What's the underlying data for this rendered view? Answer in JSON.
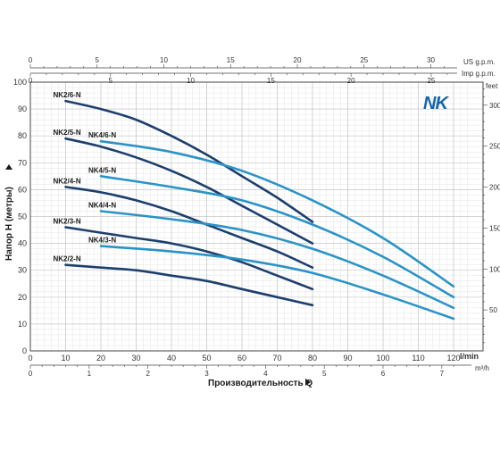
{
  "chart_data": {
    "type": "line",
    "logo": "NK",
    "xlabel": "Производительность Q",
    "ylabel": "Напор H (метры)",
    "x_unit": "l/min",
    "y2_unit": "feet",
    "top1_unit": "US g.p.m.",
    "top2_unit": "Imp g.p.m.",
    "bottom2_unit": "m³/h",
    "xlim": [
      0,
      125
    ],
    "ylim": [
      0,
      100
    ],
    "x_ticks": [
      0,
      10,
      20,
      30,
      40,
      50,
      60,
      70,
      80,
      90,
      100,
      110,
      120
    ],
    "y_ticks": [
      0,
      10,
      20,
      30,
      40,
      50,
      60,
      70,
      80,
      90,
      100
    ],
    "y2_ticks": [
      50,
      100,
      150,
      200,
      250,
      300
    ],
    "top1_ticks": [
      0,
      5,
      10,
      15,
      20,
      25,
      30
    ],
    "top2_ticks": [
      0,
      5,
      10,
      15,
      20,
      25
    ],
    "bottom2_ticks": [
      0,
      1,
      2,
      3,
      4,
      5,
      6,
      7
    ],
    "series": [
      {
        "name": "NK2/6-N",
        "color": "#1c3f6e",
        "x": [
          10,
          20,
          30,
          40,
          50,
          60,
          70,
          80
        ],
        "y": [
          93,
          90,
          86,
          80,
          73,
          65,
          57,
          48
        ]
      },
      {
        "name": "NK2/5-N",
        "color": "#1c3f6e",
        "x": [
          10,
          20,
          30,
          40,
          50,
          60,
          70,
          80
        ],
        "y": [
          79,
          76,
          72,
          67,
          61,
          54,
          47,
          40
        ]
      },
      {
        "name": "NK2/4-N",
        "color": "#1c3f6e",
        "x": [
          10,
          20,
          30,
          40,
          50,
          60,
          70,
          80
        ],
        "y": [
          61,
          59,
          56,
          52,
          47,
          42,
          37,
          31
        ]
      },
      {
        "name": "NK2/3-N",
        "color": "#1c3f6e",
        "x": [
          10,
          20,
          30,
          40,
          50,
          60,
          70,
          80
        ],
        "y": [
          46,
          44,
          42,
          40,
          37,
          33,
          28,
          23
        ]
      },
      {
        "name": "NK2/2-N",
        "color": "#1c3f6e",
        "x": [
          10,
          20,
          30,
          40,
          50,
          60,
          70,
          80
        ],
        "y": [
          32,
          31,
          30,
          28,
          26,
          23,
          20,
          17
        ]
      },
      {
        "name": "NK4/6-N",
        "color": "#2a93c8",
        "x": [
          20,
          40,
          60,
          80,
          100,
          120
        ],
        "y": [
          78,
          74,
          67,
          56,
          42,
          24
        ]
      },
      {
        "name": "NK4/5-N",
        "color": "#2a93c8",
        "x": [
          20,
          40,
          60,
          80,
          100,
          120
        ],
        "y": [
          65,
          61,
          56,
          47,
          35,
          20
        ]
      },
      {
        "name": "NK4/4-N",
        "color": "#2a93c8",
        "x": [
          20,
          40,
          60,
          80,
          100,
          120
        ],
        "y": [
          52,
          49,
          45,
          38,
          28,
          16
        ]
      },
      {
        "name": "NK4/3-N",
        "color": "#2a93c8",
        "x": [
          20,
          40,
          60,
          80,
          100,
          120
        ],
        "y": [
          39,
          37,
          34,
          29,
          21,
          12
        ]
      }
    ]
  }
}
